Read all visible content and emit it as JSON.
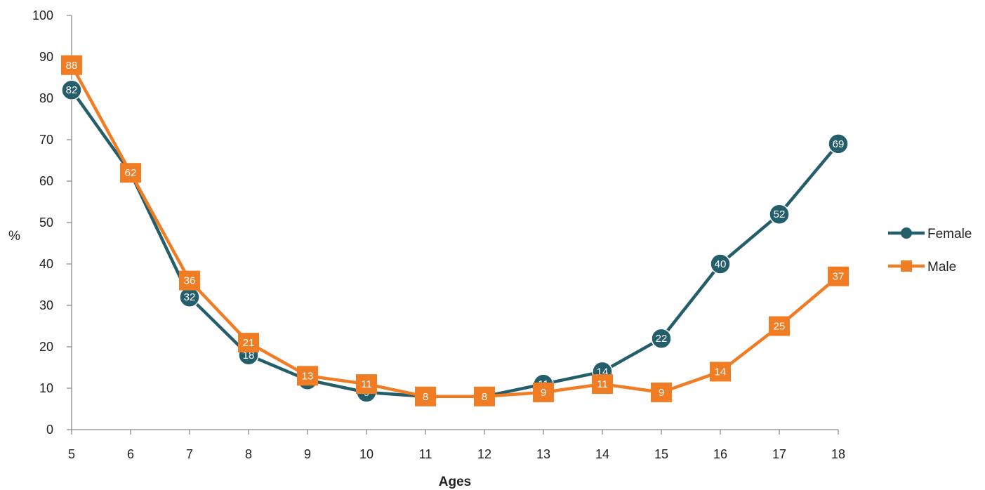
{
  "chart_data": {
    "type": "line",
    "title": "",
    "xlabel": "Ages",
    "ylabel": "%",
    "x": [
      5,
      6,
      7,
      8,
      9,
      10,
      11,
      12,
      13,
      14,
      15,
      16,
      17,
      18
    ],
    "ylim": [
      0,
      100
    ],
    "yticks": [
      0,
      10,
      20,
      30,
      40,
      50,
      60,
      70,
      80,
      90,
      100
    ],
    "grid": false,
    "legend_position": "right",
    "series": [
      {
        "name": "Female",
        "color": "#255E6B",
        "marker": "circle",
        "values": [
          82,
          62,
          32,
          18,
          12,
          9,
          8,
          8,
          11,
          14,
          22,
          40,
          52,
          69
        ],
        "labels": [
          "82",
          "62",
          "32",
          "18",
          "12",
          "9",
          "8",
          "8",
          "11",
          "14",
          "22",
          "40",
          "52",
          "69"
        ]
      },
      {
        "name": "Male",
        "color": "#F07C24",
        "marker": "square",
        "values": [
          88,
          62,
          36,
          21,
          13,
          11,
          8,
          8,
          9,
          11,
          9,
          14,
          25,
          37
        ],
        "labels": [
          "88",
          "62",
          "36",
          "21",
          "13",
          "11",
          "8",
          "8",
          "9",
          "11",
          "9",
          "14",
          "25",
          "37"
        ]
      }
    ]
  }
}
